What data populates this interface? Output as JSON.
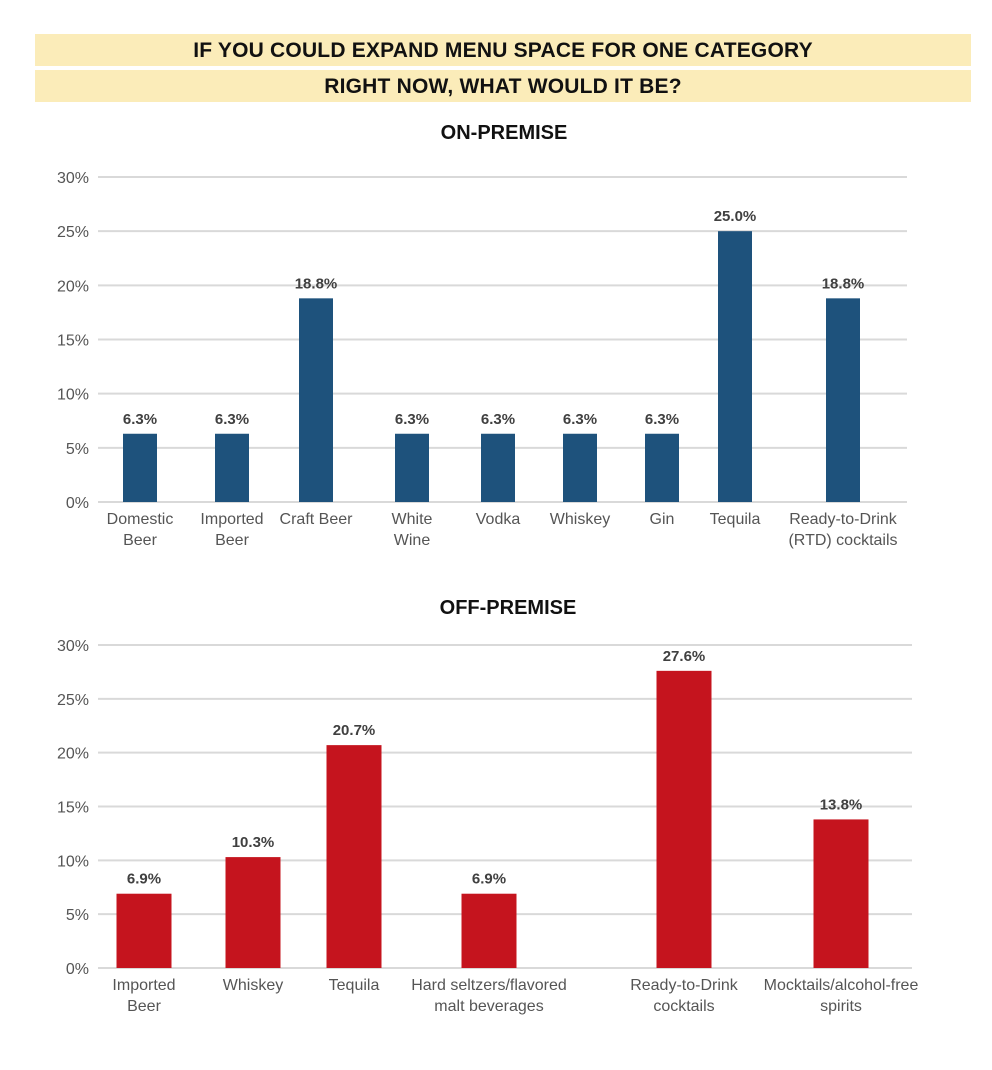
{
  "header": {
    "line1": "IF YOU COULD EXPAND MENU SPACE FOR ONE CATEGORY",
    "line2": "RIGHT NOW, WHAT WOULD IT BE?"
  },
  "colors": {
    "banner_bg": "#fbecb9",
    "on_premise_bar": "#1e527c",
    "off_premise_bar": "#c5141e",
    "gridline": "#d9d9d9"
  },
  "chart_data": [
    {
      "type": "bar",
      "title": "ON-PREMISE",
      "xlabel": "",
      "ylabel": "",
      "ylim": [
        0,
        30
      ],
      "yticks": [
        "0%",
        "5%",
        "10%",
        "15%",
        "20%",
        "25%",
        "30%"
      ],
      "grid": true,
      "categories": [
        [
          "Domestic",
          "Beer"
        ],
        [
          "Imported",
          "Beer"
        ],
        [
          "Craft Beer"
        ],
        [
          "White",
          "Wine"
        ],
        [
          "Vodka"
        ],
        [
          "Whiskey"
        ],
        [
          "Gin"
        ],
        [
          "Tequila"
        ],
        [
          "Ready-to-Drink",
          "(RTD) cocktails"
        ]
      ],
      "values": [
        6.3,
        6.3,
        18.8,
        6.3,
        6.3,
        6.3,
        6.3,
        25.0,
        18.8
      ],
      "labels": [
        "6.3%",
        "6.3%",
        "18.8%",
        "6.3%",
        "6.3%",
        "6.3%",
        "6.3%",
        "25.0%",
        "18.8%"
      ],
      "color": "#1e527c"
    },
    {
      "type": "bar",
      "title": "OFF-PREMISE",
      "xlabel": "",
      "ylabel": "",
      "ylim": [
        0,
        30
      ],
      "yticks": [
        "0%",
        "5%",
        "10%",
        "15%",
        "20%",
        "25%",
        "30%"
      ],
      "grid": true,
      "categories": [
        [
          "Imported",
          "Beer"
        ],
        [
          "Whiskey"
        ],
        [
          "Tequila"
        ],
        [
          "Hard seltzers/flavored",
          "malt beverages"
        ],
        [
          "Ready-to-Drink",
          "cocktails"
        ],
        [
          "Mocktails/alcohol-free",
          "spirits"
        ]
      ],
      "values": [
        6.9,
        10.3,
        20.7,
        6.9,
        27.6,
        13.8
      ],
      "labels": [
        "6.9%",
        "10.3%",
        "20.7%",
        "6.9%",
        "27.6%",
        "13.8%"
      ],
      "color": "#c5141e"
    }
  ]
}
